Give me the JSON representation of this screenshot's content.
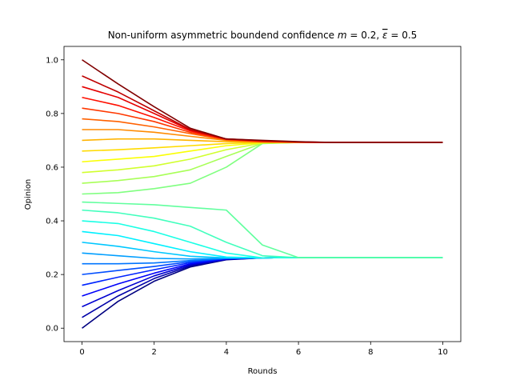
{
  "chart_data": {
    "type": "line",
    "title": "Non-uniform asymmetric boundend confidence",
    "title_params": {
      "m_symbol": "m",
      "eps_symbol": "ε",
      "m_value": "0.2",
      "eps_value": "0.5"
    },
    "xlabel": "Rounds",
    "ylabel": "Opinion",
    "xlim": [
      -0.5,
      10.5
    ],
    "ylim": [
      -0.05,
      1.05
    ],
    "xticks": [
      0,
      2,
      4,
      6,
      8,
      10
    ],
    "xtick_labels": [
      "0",
      "2",
      "4",
      "6",
      "8",
      "10"
    ],
    "yticks": [
      0.0,
      0.2,
      0.4,
      0.6,
      0.8,
      1.0
    ],
    "ytick_labels": [
      "0.0",
      "0.2",
      "0.4",
      "0.6",
      "0.8",
      "1.0"
    ],
    "grid": false,
    "legend": "none",
    "colormap": "jet",
    "line_color_by": "initial opinion",
    "x": [
      0,
      1,
      2,
      3,
      4,
      5,
      6,
      7,
      8,
      9,
      10
    ],
    "series": [
      {
        "values": [
          0.0,
          0.1,
          0.175,
          0.228,
          0.255,
          0.262,
          0.263,
          0.263,
          0.263,
          0.263,
          0.263
        ]
      },
      {
        "values": [
          0.04,
          0.12,
          0.185,
          0.232,
          0.256,
          0.262,
          0.263,
          0.263,
          0.263,
          0.263,
          0.263
        ]
      },
      {
        "values": [
          0.08,
          0.14,
          0.195,
          0.236,
          0.257,
          0.262,
          0.263,
          0.263,
          0.263,
          0.263,
          0.263
        ]
      },
      {
        "values": [
          0.12,
          0.165,
          0.205,
          0.24,
          0.258,
          0.262,
          0.263,
          0.263,
          0.263,
          0.263,
          0.263
        ]
      },
      {
        "values": [
          0.16,
          0.19,
          0.218,
          0.244,
          0.259,
          0.262,
          0.263,
          0.263,
          0.263,
          0.263,
          0.263
        ]
      },
      {
        "values": [
          0.2,
          0.215,
          0.23,
          0.248,
          0.26,
          0.262,
          0.263,
          0.263,
          0.263,
          0.263,
          0.263
        ]
      },
      {
        "values": [
          0.24,
          0.24,
          0.243,
          0.252,
          0.26,
          0.262,
          0.263,
          0.263,
          0.263,
          0.263,
          0.263
        ]
      },
      {
        "values": [
          0.28,
          0.27,
          0.26,
          0.258,
          0.261,
          0.262,
          0.263,
          0.263,
          0.263,
          0.263,
          0.263
        ]
      },
      {
        "values": [
          0.32,
          0.305,
          0.285,
          0.268,
          0.262,
          0.262,
          0.263,
          0.263,
          0.263,
          0.263,
          0.263
        ]
      },
      {
        "values": [
          0.36,
          0.345,
          0.315,
          0.285,
          0.265,
          0.262,
          0.263,
          0.263,
          0.263,
          0.263,
          0.263
        ]
      },
      {
        "values": [
          0.4,
          0.39,
          0.36,
          0.32,
          0.28,
          0.262,
          0.263,
          0.263,
          0.263,
          0.263,
          0.263
        ]
      },
      {
        "values": [
          0.44,
          0.43,
          0.41,
          0.38,
          0.32,
          0.27,
          0.263,
          0.263,
          0.263,
          0.263,
          0.263
        ]
      },
      {
        "values": [
          0.47,
          0.465,
          0.46,
          0.45,
          0.44,
          0.31,
          0.263,
          0.263,
          0.263,
          0.263,
          0.263
        ]
      },
      {
        "values": [
          0.5,
          0.505,
          0.52,
          0.54,
          0.6,
          0.688,
          0.692,
          0.692,
          0.692,
          0.692,
          0.692
        ]
      },
      {
        "values": [
          0.54,
          0.55,
          0.565,
          0.59,
          0.64,
          0.689,
          0.692,
          0.692,
          0.692,
          0.692,
          0.692
        ]
      },
      {
        "values": [
          0.58,
          0.59,
          0.605,
          0.63,
          0.665,
          0.69,
          0.692,
          0.692,
          0.692,
          0.692,
          0.692
        ]
      },
      {
        "values": [
          0.62,
          0.63,
          0.64,
          0.66,
          0.68,
          0.691,
          0.692,
          0.692,
          0.692,
          0.692,
          0.692
        ]
      },
      {
        "values": [
          0.66,
          0.665,
          0.672,
          0.68,
          0.688,
          0.692,
          0.692,
          0.692,
          0.692,
          0.692,
          0.692
        ]
      },
      {
        "values": [
          0.7,
          0.705,
          0.705,
          0.7,
          0.695,
          0.692,
          0.692,
          0.692,
          0.692,
          0.692,
          0.692
        ]
      },
      {
        "values": [
          0.74,
          0.74,
          0.73,
          0.715,
          0.7,
          0.694,
          0.692,
          0.692,
          0.692,
          0.692,
          0.692
        ]
      },
      {
        "values": [
          0.78,
          0.77,
          0.75,
          0.725,
          0.702,
          0.695,
          0.693,
          0.692,
          0.692,
          0.692,
          0.692
        ]
      },
      {
        "values": [
          0.82,
          0.8,
          0.77,
          0.73,
          0.703,
          0.696,
          0.693,
          0.692,
          0.692,
          0.692,
          0.692
        ]
      },
      {
        "values": [
          0.86,
          0.83,
          0.785,
          0.735,
          0.704,
          0.697,
          0.693,
          0.692,
          0.692,
          0.692,
          0.692
        ]
      },
      {
        "values": [
          0.9,
          0.86,
          0.8,
          0.738,
          0.705,
          0.698,
          0.694,
          0.692,
          0.692,
          0.692,
          0.692
        ]
      },
      {
        "values": [
          0.94,
          0.88,
          0.81,
          0.74,
          0.705,
          0.699,
          0.694,
          0.692,
          0.692,
          0.692,
          0.692
        ]
      },
      {
        "values": [
          1.0,
          0.91,
          0.825,
          0.745,
          0.705,
          0.7,
          0.695,
          0.692,
          0.692,
          0.692,
          0.692
        ]
      }
    ]
  }
}
